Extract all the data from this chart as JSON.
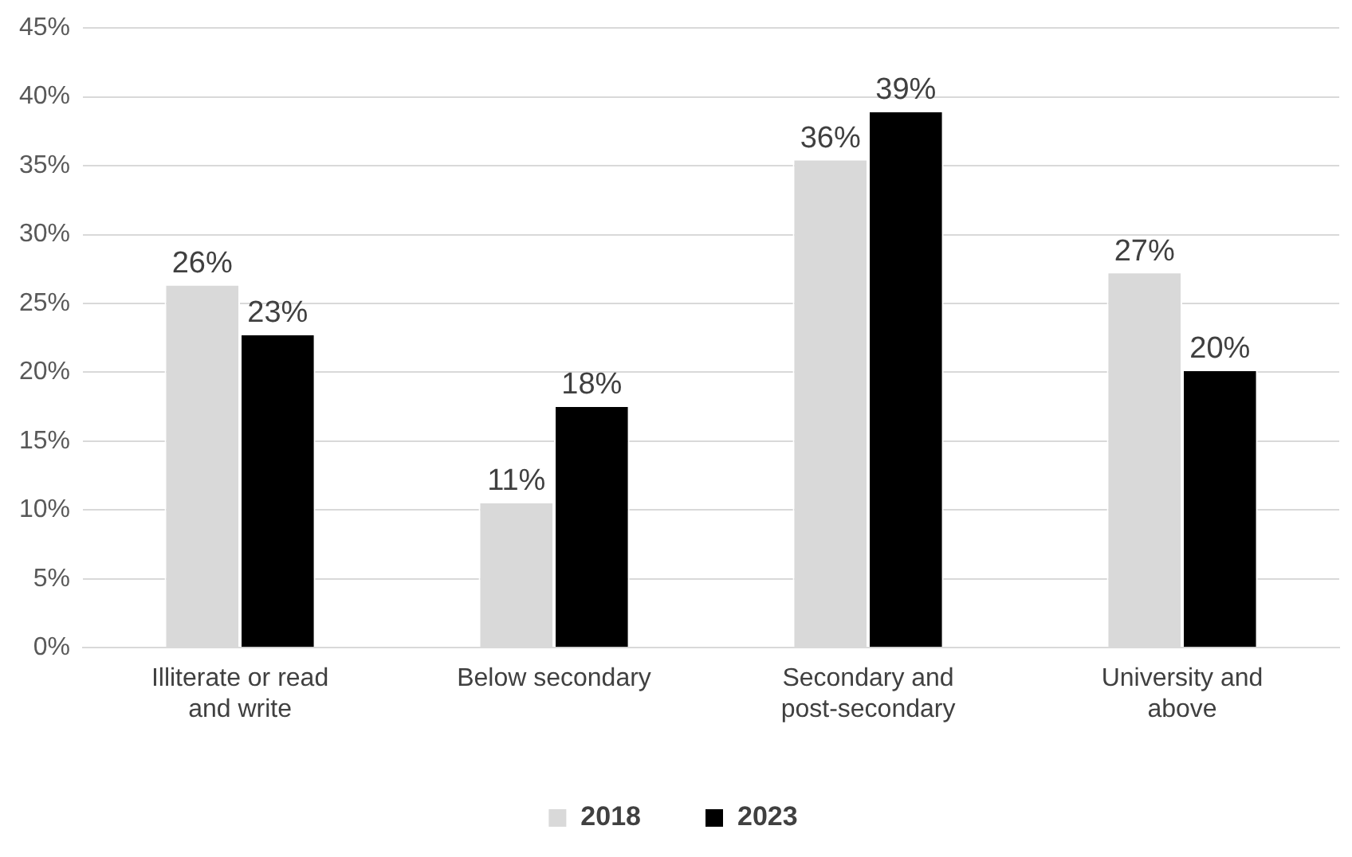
{
  "chart_data": {
    "type": "bar",
    "categories": [
      "Illiterate or read and write",
      "Below secondary",
      "Secondary and post-secondary",
      "University and above"
    ],
    "series": [
      {
        "name": "2018",
        "color": "#d9d9d9",
        "values": [
          26.4,
          10.6,
          35.5,
          27.3
        ],
        "value_labels": [
          "26%",
          "11%",
          "36%",
          "27%"
        ]
      },
      {
        "name": "2023",
        "color": "#000000",
        "values": [
          22.8,
          17.6,
          39,
          20.2
        ],
        "value_labels": [
          "23%",
          "18%",
          "39%",
          "20%"
        ]
      }
    ],
    "ylim": [
      0,
      45
    ],
    "yticks": [
      {
        "value": 0,
        "label": "0%"
      },
      {
        "value": 5,
        "label": "5%"
      },
      {
        "value": 10,
        "label": "10%"
      },
      {
        "value": 15,
        "label": "15%"
      },
      {
        "value": 20,
        "label": "20%"
      },
      {
        "value": 25,
        "label": "25%"
      },
      {
        "value": 30,
        "label": "30%"
      },
      {
        "value": 35,
        "label": "35%"
      },
      {
        "value": 40,
        "label": "40%"
      },
      {
        "value": 45,
        "label": "45%"
      }
    ],
    "grid": "y",
    "legend": "bottom"
  }
}
